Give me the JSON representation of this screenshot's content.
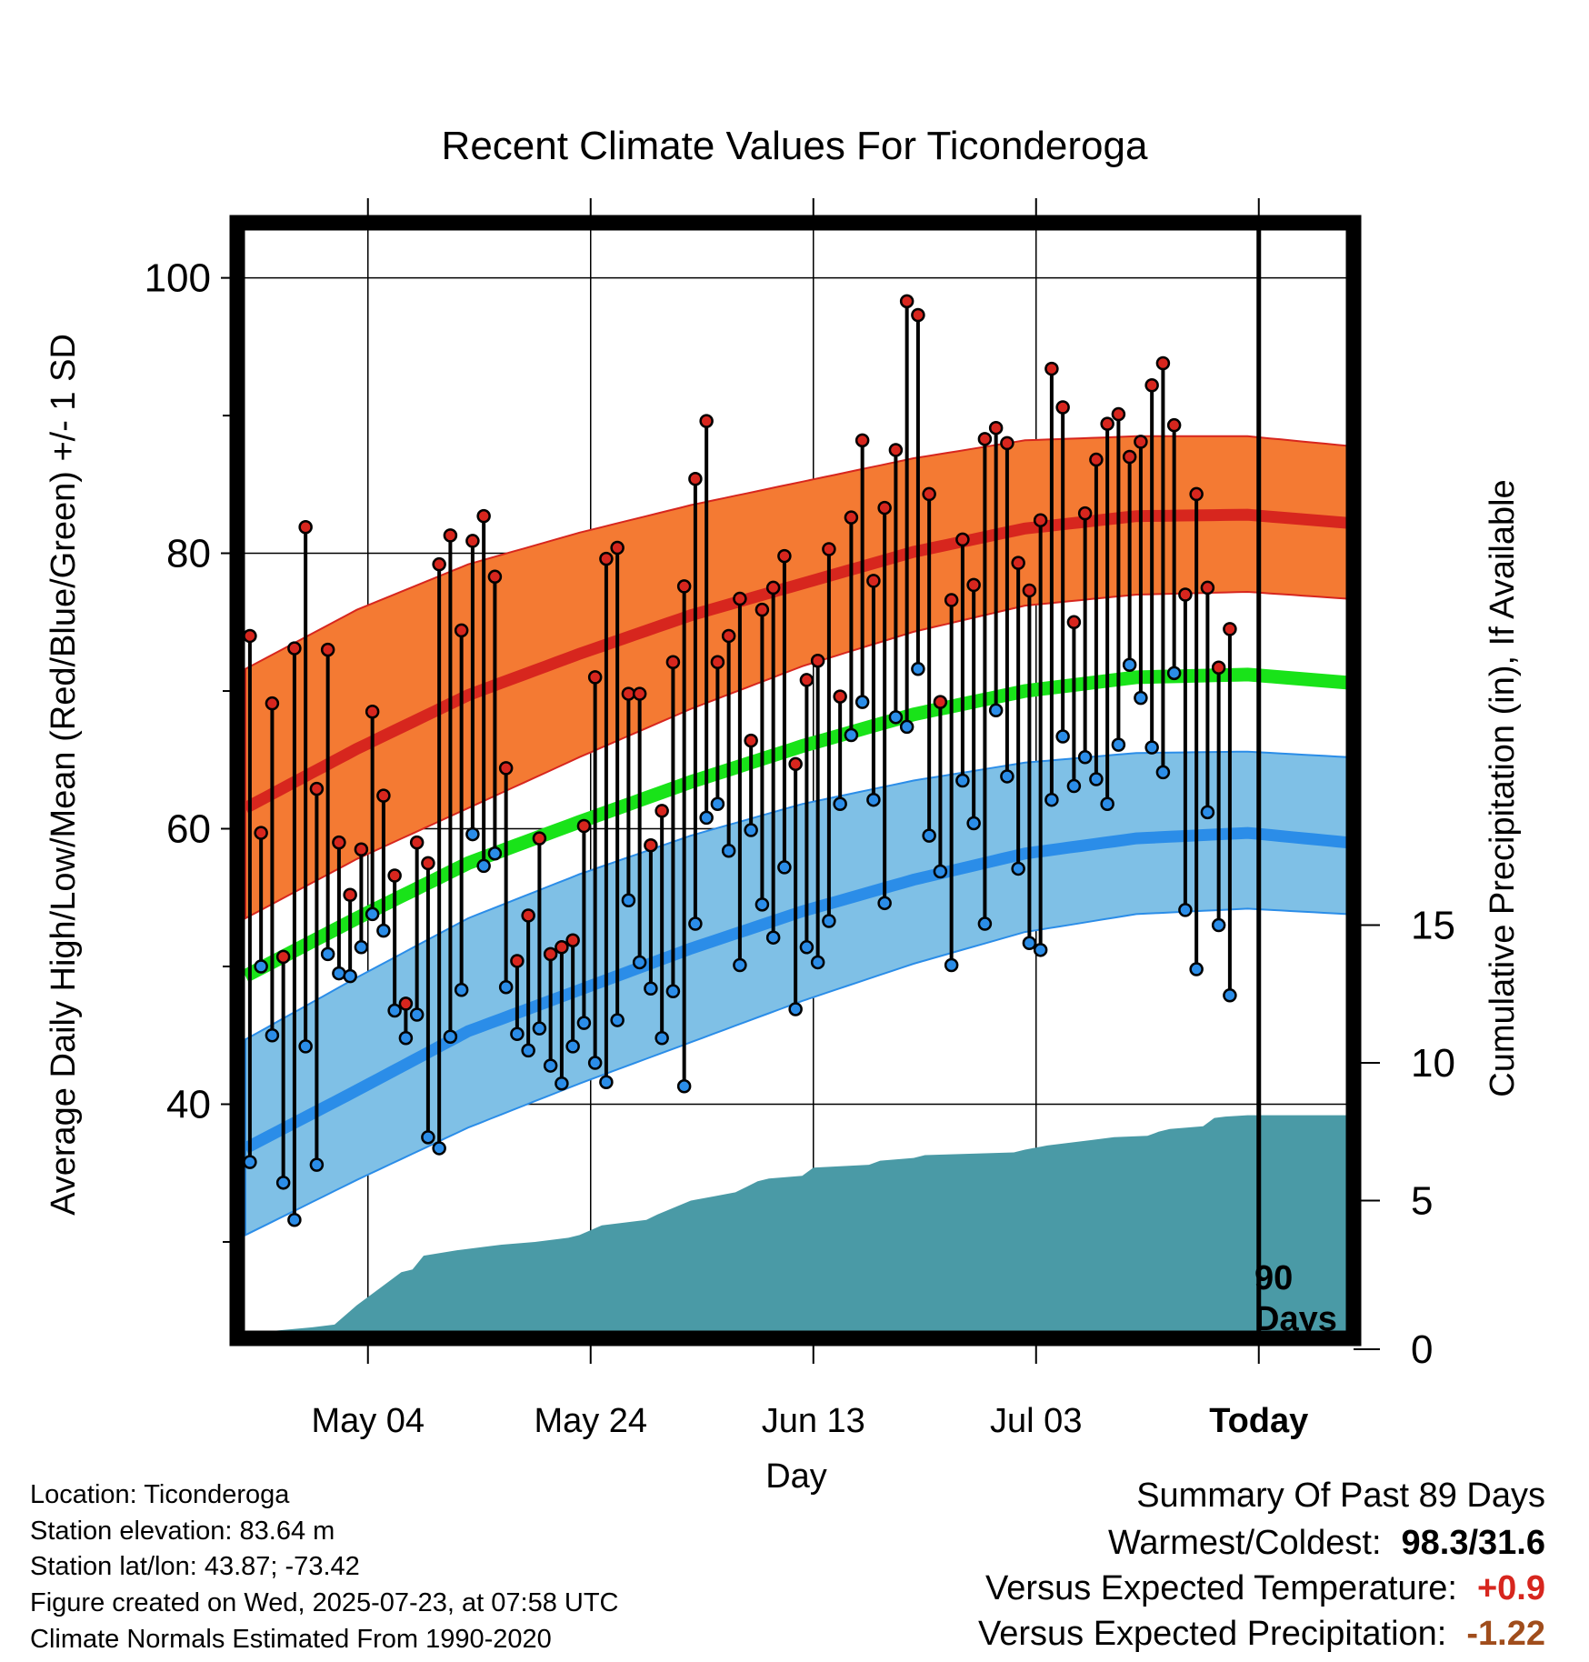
{
  "chart_data": {
    "type": "line",
    "title": "Recent Climate Values For Ticonderoga",
    "xlabel": "Day",
    "ylabel": "Average Daily High/Low/Mean (Red/Blue/Green) +/- 1 SD",
    "y2label": "Cumulative Precipitation (in), If Available",
    "ylim": [
      23,
      104
    ],
    "y_ticks": [
      40,
      60,
      80,
      100
    ],
    "y2lim": [
      0,
      40.5
    ],
    "y2_ticks": [
      0,
      5,
      10,
      15
    ],
    "x_range_days": [
      0,
      99
    ],
    "x_ticks": [
      {
        "day": 11,
        "label": "May 04"
      },
      {
        "day": 31,
        "label": "May 24"
      },
      {
        "day": 51,
        "label": "Jun 13"
      },
      {
        "day": 71,
        "label": "Jul 03"
      },
      {
        "day": 91,
        "label": "Today"
      }
    ],
    "today_day": 91,
    "today_annotation": [
      "90",
      "Days"
    ],
    "grid": true,
    "normals": {
      "days": [
        0,
        10,
        20,
        30,
        40,
        50,
        60,
        70,
        80,
        90,
        99
      ],
      "high": [
        61.5,
        65.8,
        69.7,
        72.7,
        75.5,
        77.8,
        80.1,
        81.8,
        82.7,
        82.8,
        82.2
      ],
      "high_sd_upper": [
        71.6,
        75.9,
        79.2,
        81.5,
        83.5,
        85.2,
        86.9,
        88.2,
        88.5,
        88.5,
        87.8
      ],
      "high_sd_lower": [
        53.5,
        57.8,
        61.5,
        65.2,
        68.7,
        71.8,
        74.3,
        76.2,
        77.0,
        77.2,
        76.7
      ],
      "low": [
        36.8,
        41.0,
        45.3,
        48.3,
        51.3,
        54.0,
        56.3,
        58.2,
        59.3,
        59.7,
        59.0
      ],
      "low_sd_upper": [
        44.7,
        49.2,
        53.5,
        56.7,
        59.5,
        61.8,
        63.5,
        64.8,
        65.5,
        65.6,
        65.2
      ],
      "low_sd_lower": [
        30.5,
        34.5,
        38.3,
        41.5,
        44.5,
        47.5,
        50.2,
        52.5,
        53.8,
        54.2,
        53.8
      ],
      "mean": [
        49.3,
        53.5,
        57.5,
        60.5,
        63.4,
        66.0,
        68.3,
        70.0,
        71.0,
        71.2,
        70.6
      ]
    },
    "series": [
      {
        "name": "High",
        "values": [
          74.0,
          59.7,
          69.1,
          50.7,
          73.1,
          81.9,
          62.9,
          73.0,
          59.0,
          55.2,
          58.5,
          68.5,
          62.4,
          56.6,
          47.3,
          59.0,
          57.5,
          79.2,
          81.3,
          74.4,
          80.9,
          82.7,
          78.3,
          64.4,
          50.4,
          53.7,
          59.3,
          50.9,
          51.4,
          51.9,
          60.2,
          71.0,
          79.6,
          80.4,
          69.8,
          69.8,
          58.8,
          61.3,
          72.1,
          77.6,
          85.4,
          89.6,
          72.1,
          74.0,
          76.7,
          66.4,
          75.9,
          77.5,
          79.8,
          64.7,
          70.8,
          72.2,
          80.3,
          69.6,
          82.6,
          88.2,
          78.0,
          83.3,
          87.5,
          98.3,
          97.3,
          84.3,
          69.2,
          76.6,
          81.0,
          77.7,
          88.3,
          89.1,
          88.0,
          79.3,
          77.3,
          82.4,
          93.4,
          90.6,
          75.0,
          82.9,
          86.8,
          89.4,
          90.1,
          87.0,
          88.1,
          92.2,
          93.8,
          89.3,
          77.0,
          84.3,
          77.5,
          71.7,
          74.5
        ]
      },
      {
        "name": "Low",
        "values": [
          35.8,
          50.0,
          45.0,
          34.3,
          31.6,
          44.2,
          35.6,
          50.9,
          49.5,
          49.3,
          51.4,
          53.8,
          52.6,
          46.8,
          44.8,
          46.5,
          37.6,
          36.8,
          44.9,
          48.3,
          59.6,
          57.3,
          58.2,
          48.5,
          45.1,
          43.9,
          45.5,
          42.8,
          41.5,
          44.2,
          45.9,
          43.0,
          41.6,
          46.1,
          54.8,
          50.3,
          48.4,
          44.8,
          48.2,
          41.3,
          53.1,
          60.8,
          61.8,
          58.4,
          50.1,
          59.9,
          54.5,
          52.1,
          57.2,
          46.9,
          51.4,
          50.3,
          53.3,
          61.8,
          66.8,
          69.2,
          62.1,
          54.6,
          68.1,
          67.4,
          71.6,
          59.5,
          56.9,
          50.1,
          63.5,
          60.4,
          53.1,
          68.6,
          63.8,
          57.1,
          51.7,
          51.2,
          62.1,
          66.7,
          63.1,
          65.2,
          63.6,
          61.8,
          66.1,
          71.9,
          69.5,
          65.9,
          64.1,
          71.3,
          54.1,
          49.8,
          61.2,
          53.0,
          47.9
        ]
      },
      {
        "name": "Cumulative Precipitation",
        "days": [
          0,
          2,
          6,
          8,
          10,
          12,
          14,
          15,
          16,
          19,
          22,
          23,
          26,
          29,
          30,
          32,
          36,
          37,
          40,
          42,
          44,
          45,
          46,
          47,
          50,
          51,
          56,
          57,
          60,
          61,
          69,
          70,
          72,
          74,
          76,
          78,
          81,
          82,
          83,
          86,
          87,
          88,
          90,
          99
        ],
        "values": [
          0.0,
          0.25,
          0.4,
          0.5,
          1.2,
          1.8,
          2.4,
          2.5,
          3.0,
          3.2,
          3.35,
          3.4,
          3.5,
          3.65,
          3.75,
          4.1,
          4.3,
          4.5,
          5.0,
          5.15,
          5.3,
          5.5,
          5.7,
          5.8,
          5.9,
          6.2,
          6.3,
          6.45,
          6.55,
          6.65,
          6.75,
          6.85,
          7.0,
          7.1,
          7.2,
          7.3,
          7.35,
          7.5,
          7.6,
          7.7,
          8.0,
          8.05,
          8.1,
          8.1
        ]
      }
    ]
  },
  "info": {
    "location": "Location: Ticonderoga",
    "elevation": "Station elevation: 83.64 m",
    "latlon": "Station lat/lon: 43.87; -73.42",
    "created": "Figure created on Wed, 2025-07-23, at 07:58 UTC",
    "normals": "Climate Normals Estimated From 1990-2020"
  },
  "summary": {
    "heading": "Summary Of Past 89 Days",
    "warmest_label": "Warmest/Coldest:",
    "warmest_value": "98.3/31.6",
    "temp_label": "Versus Expected Temperature:",
    "temp_value": "+0.9",
    "precip_label": "Versus Expected Precipitation:",
    "precip_value": "-1.22"
  },
  "colors": {
    "high_line": "#d7261e",
    "high_band": "#f47a33",
    "low_line": "#2b8de8",
    "low_band": "#7fc0e6",
    "mean_line": "#19e319",
    "precip_fill": "#4a9aa6",
    "high_marker": "#d7261e",
    "low_marker": "#2b8de8",
    "temp_anomaly": "#d7261e",
    "precip_anomaly": "#a04d1c"
  }
}
